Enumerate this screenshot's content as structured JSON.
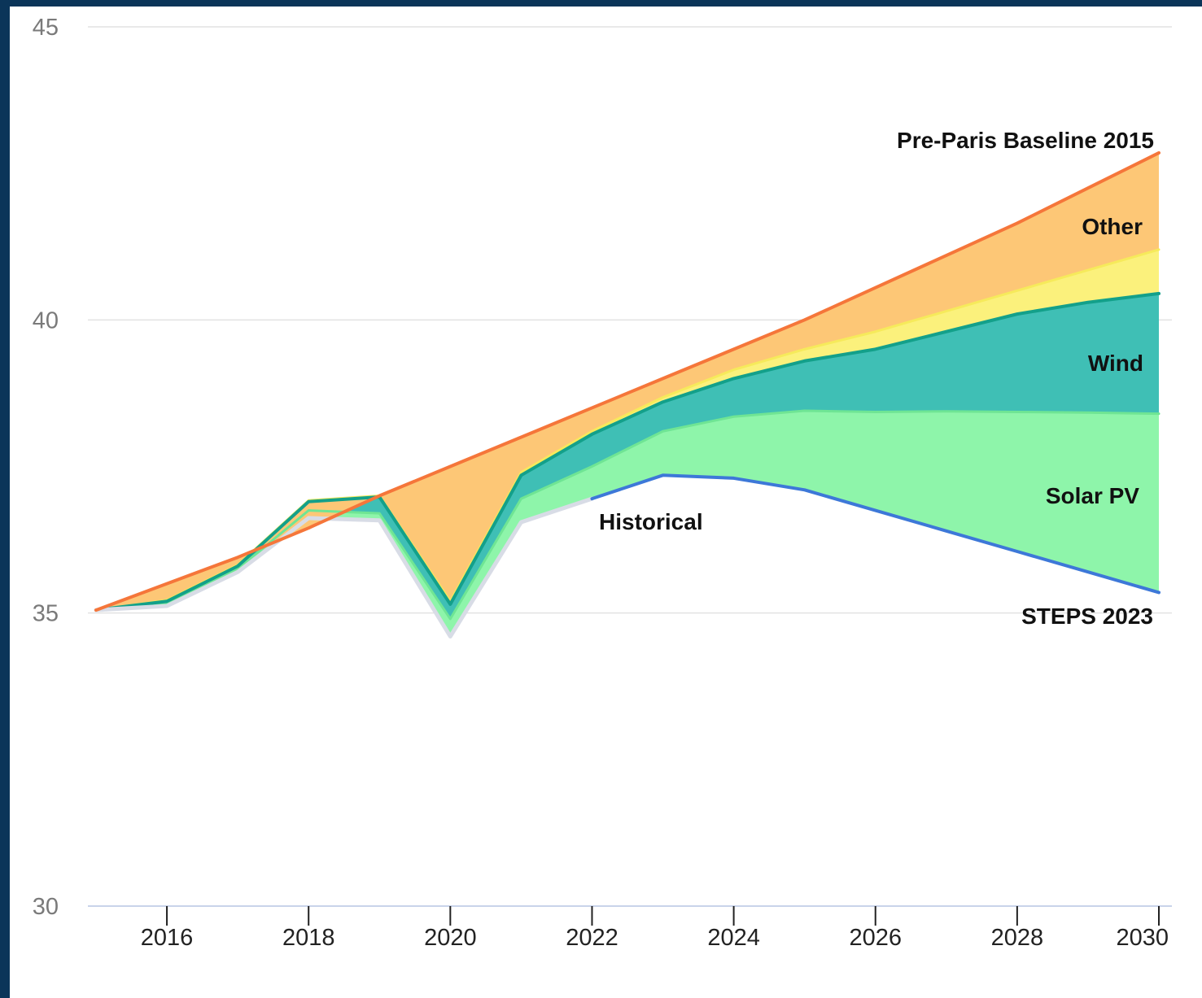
{
  "chart_data": {
    "type": "area",
    "title": "",
    "xlabel": "",
    "ylabel": "",
    "xlim": [
      2015,
      2030
    ],
    "ylim": [
      30,
      45
    ],
    "y_ticks": [
      30,
      35,
      40,
      45
    ],
    "x_ticks": [
      2016,
      2018,
      2020,
      2022,
      2024,
      2026,
      2028,
      2030
    ],
    "grid": true,
    "legend": "none",
    "x": [
      2015,
      2016,
      2017,
      2018,
      2019,
      2020,
      2021,
      2022,
      2023,
      2024,
      2025,
      2026,
      2027,
      2028,
      2029,
      2030
    ],
    "lines": {
      "historical": [
        35.05,
        35.12,
        35.7,
        36.62,
        36.58,
        34.6,
        36.55,
        36.95,
        null,
        null,
        null,
        null,
        null,
        null,
        null,
        null
      ],
      "steps": [
        null,
        null,
        null,
        null,
        null,
        null,
        null,
        36.95,
        37.35,
        37.3,
        37.1,
        36.75,
        36.4,
        36.05,
        35.7,
        35.35
      ],
      "solar_pv_top": [
        35.05,
        35.15,
        35.75,
        36.75,
        36.7,
        34.9,
        36.95,
        37.5,
        38.1,
        38.35,
        38.45,
        38.43,
        38.44,
        38.43,
        38.42,
        38.4
      ],
      "wind_top": [
        35.05,
        35.2,
        35.8,
        36.9,
        36.98,
        35.15,
        37.35,
        38.05,
        38.6,
        39.0,
        39.3,
        39.5,
        39.8,
        40.1,
        40.3,
        40.45
      ],
      "yellow_top": [
        35.05,
        35.22,
        35.82,
        36.92,
        37.0,
        35.2,
        37.4,
        38.1,
        38.68,
        39.15,
        39.5,
        39.8,
        40.15,
        40.5,
        40.85,
        41.2
      ],
      "baseline": [
        35.05,
        35.5,
        35.95,
        36.45,
        37.0,
        37.5,
        38.0,
        38.5,
        39.0,
        39.5,
        40.0,
        40.55,
        41.1,
        41.65,
        42.25,
        42.85
      ]
    },
    "series": [
      {
        "name": "Solar PV",
        "color": "#8ef5aa",
        "edge": "#6fe594"
      },
      {
        "name": "Wind",
        "color": "#3fbfb5",
        "edge": "#13a08a"
      },
      {
        "name": "",
        "color": "#fbf17c",
        "edge": "#f6ea5b"
      },
      {
        "name": "Other",
        "color": "#fdc776",
        "edge": "#f5763a"
      }
    ],
    "annotations": {
      "pre_paris": "Pre-Paris Baseline 2015",
      "other": "Other",
      "wind": "Wind",
      "solar": "Solar PV",
      "historical": "Historical",
      "steps": "STEPS 2023"
    },
    "colors": {
      "historical": "#d8dce6",
      "steps": "#3d78d8",
      "baseline": "#f5763a"
    }
  }
}
